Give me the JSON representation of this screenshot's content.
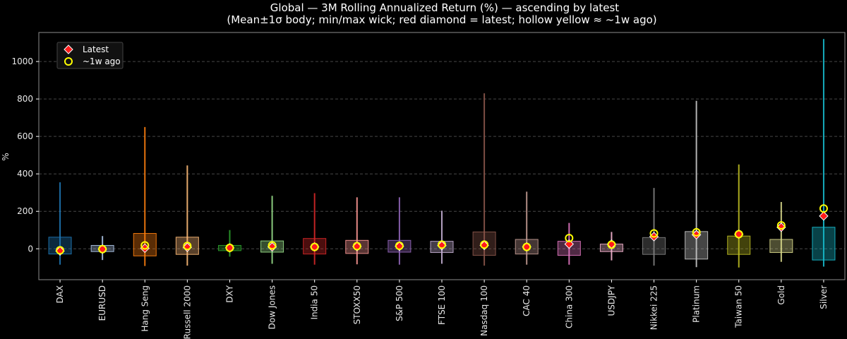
{
  "chart_data": {
    "type": "box",
    "title": "Global — 3M Rolling Annualized Return (%) — ascending by latest",
    "subtitle": "(Mean±1σ body; min/max wick; red diamond = latest; hollow yellow ≈ ~1w ago)",
    "xlabel": "",
    "ylabel": "%",
    "ylim": [
      -165,
      1155
    ],
    "yticks": [
      0,
      200,
      400,
      600,
      800,
      1000
    ],
    "grid": true,
    "legend": {
      "placement": "top-left",
      "entries": [
        {
          "label": "Latest",
          "marker": "diamond",
          "color": "#ff1a1a"
        },
        {
          "label": "~1w ago",
          "marker": "hollow-circle",
          "color": "#ffff00"
        }
      ]
    },
    "series": [
      {
        "name": "DAX",
        "color": "#1f77b4",
        "body_low": -28,
        "body_high": 62,
        "min": -85,
        "max": 355,
        "latest": -12,
        "week_ago": -8
      },
      {
        "name": "EURUSD",
        "color": "#aec7e8",
        "body_low": -15,
        "body_high": 18,
        "min": -60,
        "max": 68,
        "latest": -2,
        "week_ago": -2
      },
      {
        "name": "Hang Seng",
        "color": "#ff7f0e",
        "body_low": -38,
        "body_high": 82,
        "min": -92,
        "max": 650,
        "latest": 3,
        "week_ago": 18
      },
      {
        "name": "Russell 2000",
        "color": "#ffbb78",
        "body_low": -30,
        "body_high": 62,
        "min": -90,
        "max": 445,
        "latest": 8,
        "week_ago": 15
      },
      {
        "name": "DXY",
        "color": "#2ca02c",
        "body_low": -10,
        "body_high": 18,
        "min": -42,
        "max": 100,
        "latest": 5,
        "week_ago": 5
      },
      {
        "name": "Dow Jones",
        "color": "#98df8a",
        "body_low": -18,
        "body_high": 42,
        "min": -80,
        "max": 283,
        "latest": 10,
        "week_ago": 18
      },
      {
        "name": "India 50",
        "color": "#d62728",
        "body_low": -28,
        "body_high": 55,
        "min": -85,
        "max": 297,
        "latest": 10,
        "week_ago": 10
      },
      {
        "name": "STOXX50",
        "color": "#ff9896",
        "body_low": -25,
        "body_high": 45,
        "min": -83,
        "max": 275,
        "latest": 12,
        "week_ago": 14
      },
      {
        "name": "S&P 500",
        "color": "#9467bd",
        "body_low": -18,
        "body_high": 45,
        "min": -85,
        "max": 275,
        "latest": 13,
        "week_ago": 16
      },
      {
        "name": "FTSE 100",
        "color": "#c5b0d5",
        "body_low": -20,
        "body_high": 40,
        "min": -80,
        "max": 203,
        "latest": 17,
        "week_ago": 22
      },
      {
        "name": "Nasdaq 100",
        "color": "#8c564b",
        "body_low": -35,
        "body_high": 90,
        "min": -90,
        "max": 830,
        "latest": 18,
        "week_ago": 22
      },
      {
        "name": "CAC 40",
        "color": "#c49c94",
        "body_low": -28,
        "body_high": 50,
        "min": -85,
        "max": 305,
        "latest": 10,
        "week_ago": 10
      },
      {
        "name": "China 300",
        "color": "#e377c2",
        "body_low": -35,
        "body_high": 40,
        "min": -85,
        "max": 138,
        "latest": 25,
        "week_ago": 57
      },
      {
        "name": "USDJPY",
        "color": "#f7b6d2",
        "body_low": -15,
        "body_high": 25,
        "min": -62,
        "max": 90,
        "latest": 25,
        "week_ago": 22
      },
      {
        "name": "Nikkei 225",
        "color": "#7f7f7f",
        "body_low": -30,
        "body_high": 60,
        "min": -90,
        "max": 325,
        "latest": 65,
        "week_ago": 82
      },
      {
        "name": "Platinum",
        "color": "#c7c7c7",
        "body_low": -55,
        "body_high": 92,
        "min": -98,
        "max": 790,
        "latest": 75,
        "week_ago": 88
      },
      {
        "name": "Taiwan 50",
        "color": "#bcbd22",
        "body_low": -30,
        "body_high": 68,
        "min": -100,
        "max": 450,
        "latest": 78,
        "week_ago": 78
      },
      {
        "name": "Gold",
        "color": "#dbdb8d",
        "body_low": -20,
        "body_high": 50,
        "min": -70,
        "max": 250,
        "latest": 115,
        "week_ago": 125
      },
      {
        "name": "Silver",
        "color": "#17becf",
        "body_low": -60,
        "body_high": 115,
        "min": -95,
        "max": 1120,
        "latest": 175,
        "week_ago": 215
      }
    ]
  }
}
